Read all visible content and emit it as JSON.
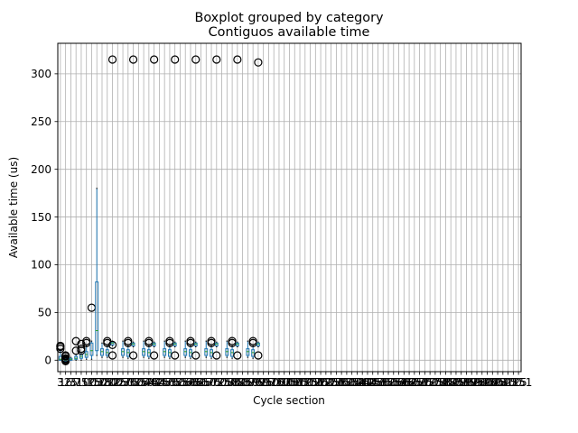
{
  "chart_data": {
    "type": "boxplot",
    "suptitle": "Boxplot grouped by category",
    "title": "Contiguos available time",
    "xlabel": "Cycle section",
    "ylabel": "Available time (us)",
    "ylim": [
      -12,
      332
    ],
    "yticks": [
      0,
      50,
      100,
      150,
      200,
      250,
      300
    ],
    "grid": true,
    "colors": {
      "box": "#1f77b4",
      "median": "#2ca02c",
      "whisker": "#1f77b4",
      "flier": "#000000",
      "grid": "#b0b0b0"
    },
    "categories": [
      "3",
      "16",
      "25",
      "31",
      "75",
      "100",
      "125",
      "150",
      "175",
      "180",
      "200",
      "225",
      "250",
      "275",
      "300",
      "325",
      "350",
      "375",
      "400",
      "425",
      "450",
      "475",
      "500",
      "525",
      "550",
      "575",
      "600",
      "625",
      "650",
      "675",
      "700",
      "725",
      "750",
      "775",
      "800",
      "825",
      "850",
      "875",
      "900",
      "925",
      "950",
      "975",
      "1000",
      "1025",
      "1050",
      "1075",
      "1100",
      "1125",
      "1150",
      "1175",
      "1200",
      "1225",
      "1250",
      "1275",
      "1300",
      "1325",
      "1350",
      "1375",
      "1400",
      "1425",
      "1450",
      "1475",
      "1500",
      "1525",
      "1550",
      "1575",
      "1600",
      "1625",
      "1650",
      "1675",
      "1700",
      "1725",
      "1750",
      "1775",
      "1800",
      "1825",
      "1850",
      "1875",
      "1900",
      "1925",
      "1950",
      "1975",
      "2000",
      "2025",
      "2050",
      "2075",
      "2100",
      "2125",
      "2151"
    ],
    "boxes": [
      {
        "pos": 1,
        "q1": 0,
        "med": 1,
        "q3": 4,
        "wlo": 0,
        "whi": 10,
        "fliers": [
          12,
          14,
          15
        ]
      },
      {
        "pos": 2,
        "q1": -1,
        "med": 0,
        "q3": 2,
        "wlo": -2,
        "whi": 3,
        "fliers": [
          -1,
          0,
          1,
          2,
          4,
          5
        ]
      },
      {
        "pos": 3,
        "q1": 0,
        "med": 1,
        "q3": 2,
        "wlo": 0,
        "whi": 3,
        "fliers": []
      },
      {
        "pos": 4,
        "q1": 1,
        "med": 2,
        "q3": 4,
        "wlo": 0,
        "whi": 6,
        "fliers": [
          10,
          20
        ]
      },
      {
        "pos": 5,
        "q1": 2,
        "med": 4,
        "q3": 6,
        "wlo": 0,
        "whi": 8,
        "fliers": [
          10,
          12,
          17
        ]
      },
      {
        "pos": 6,
        "q1": 3,
        "med": 6,
        "q3": 9,
        "wlo": 1,
        "whi": 15,
        "fliers": [
          18,
          20
        ]
      },
      {
        "pos": 7,
        "q1": 5,
        "med": 10,
        "q3": 18,
        "wlo": 1,
        "whi": 20,
        "fliers": [
          55
        ]
      },
      {
        "pos": 8,
        "q1": 10,
        "med": 31,
        "q3": 82,
        "wlo": 5,
        "whi": 180,
        "fliers": []
      },
      {
        "pos": 9,
        "q1": 5,
        "med": 9,
        "q3": 12,
        "wlo": 3,
        "whi": 18,
        "fliers": []
      },
      {
        "pos": 10,
        "q1": 5,
        "med": 8,
        "q3": 11,
        "wlo": 3,
        "whi": 15,
        "fliers": [
          18,
          20
        ]
      },
      {
        "pos": 11,
        "q1": 16,
        "med": 18,
        "q3": 19,
        "wlo": 15,
        "whi": 20,
        "fliers": [
          5,
          16,
          315
        ]
      },
      {
        "pos": 13,
        "q1": 5,
        "med": 9,
        "q3": 12,
        "wlo": 3,
        "whi": 20,
        "fliers": []
      },
      {
        "pos": 14,
        "q1": 4,
        "med": 8,
        "q3": 11,
        "wlo": 2,
        "whi": 15,
        "fliers": [
          18,
          20
        ]
      },
      {
        "pos": 15,
        "q1": 15,
        "med": 17,
        "q3": 18,
        "wlo": 14,
        "whi": 19,
        "fliers": [
          5,
          315
        ]
      },
      {
        "pos": 17,
        "q1": 5,
        "med": 9,
        "q3": 12,
        "wlo": 3,
        "whi": 20,
        "fliers": []
      },
      {
        "pos": 18,
        "q1": 4,
        "med": 8,
        "q3": 11,
        "wlo": 2,
        "whi": 15,
        "fliers": [
          18,
          20
        ]
      },
      {
        "pos": 19,
        "q1": 15,
        "med": 17,
        "q3": 18,
        "wlo": 14,
        "whi": 19,
        "fliers": [
          5,
          315
        ]
      },
      {
        "pos": 21,
        "q1": 5,
        "med": 9,
        "q3": 12,
        "wlo": 3,
        "whi": 20,
        "fliers": []
      },
      {
        "pos": 22,
        "q1": 4,
        "med": 8,
        "q3": 11,
        "wlo": 2,
        "whi": 15,
        "fliers": [
          18,
          20
        ]
      },
      {
        "pos": 23,
        "q1": 15,
        "med": 17,
        "q3": 18,
        "wlo": 14,
        "whi": 19,
        "fliers": [
          5,
          315
        ]
      },
      {
        "pos": 25,
        "q1": 5,
        "med": 9,
        "q3": 12,
        "wlo": 3,
        "whi": 20,
        "fliers": []
      },
      {
        "pos": 26,
        "q1": 4,
        "med": 8,
        "q3": 11,
        "wlo": 2,
        "whi": 15,
        "fliers": [
          18,
          20
        ]
      },
      {
        "pos": 27,
        "q1": 15,
        "med": 17,
        "q3": 18,
        "wlo": 14,
        "whi": 19,
        "fliers": [
          5,
          315
        ]
      },
      {
        "pos": 29,
        "q1": 5,
        "med": 9,
        "q3": 12,
        "wlo": 3,
        "whi": 20,
        "fliers": []
      },
      {
        "pos": 30,
        "q1": 4,
        "med": 8,
        "q3": 11,
        "wlo": 2,
        "whi": 15,
        "fliers": [
          18,
          20
        ]
      },
      {
        "pos": 31,
        "q1": 15,
        "med": 17,
        "q3": 18,
        "wlo": 14,
        "whi": 19,
        "fliers": [
          5,
          315
        ]
      },
      {
        "pos": 33,
        "q1": 5,
        "med": 9,
        "q3": 12,
        "wlo": 3,
        "whi": 20,
        "fliers": []
      },
      {
        "pos": 34,
        "q1": 4,
        "med": 8,
        "q3": 11,
        "wlo": 2,
        "whi": 15,
        "fliers": [
          18,
          20
        ]
      },
      {
        "pos": 35,
        "q1": 15,
        "med": 17,
        "q3": 18,
        "wlo": 14,
        "whi": 19,
        "fliers": [
          5,
          315
        ]
      },
      {
        "pos": 37,
        "q1": 5,
        "med": 9,
        "q3": 12,
        "wlo": 3,
        "whi": 20,
        "fliers": []
      },
      {
        "pos": 38,
        "q1": 4,
        "med": 8,
        "q3": 11,
        "wlo": 2,
        "whi": 15,
        "fliers": [
          18,
          20
        ]
      },
      {
        "pos": 39,
        "q1": 15,
        "med": 17,
        "q3": 18,
        "wlo": 14,
        "whi": 19,
        "fliers": [
          5,
          312
        ]
      }
    ]
  }
}
